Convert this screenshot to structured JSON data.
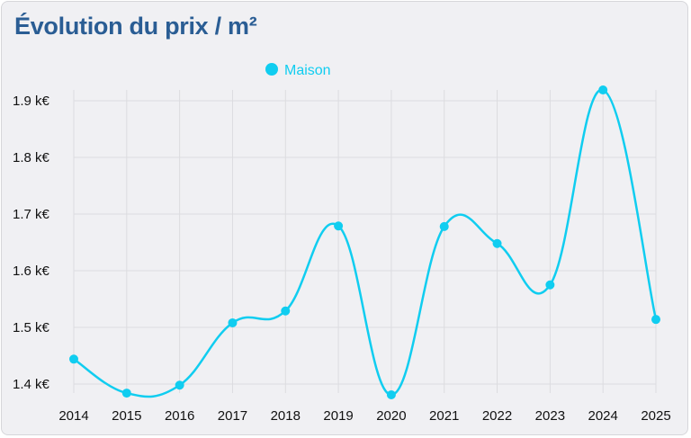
{
  "title": "Évolution du prix / m²",
  "chart_data": {
    "type": "line",
    "title": "Évolution du prix / m²",
    "categories": [
      "2014",
      "2015",
      "2016",
      "2017",
      "2018",
      "2019",
      "2020",
      "2021",
      "2022",
      "2023",
      "2024",
      "2025"
    ],
    "series": [
      {
        "name": "Maison",
        "color": "#10cdf0",
        "values": [
          1.444,
          1.384,
          1.398,
          1.508,
          1.529,
          1.679,
          1.381,
          1.678,
          1.648,
          1.575,
          1.919,
          1.514
        ]
      }
    ],
    "y_unit": "k€",
    "yticks": [
      1.4,
      1.5,
      1.6,
      1.7,
      1.8,
      1.9
    ],
    "ytick_labels": [
      "1.4 k€",
      "1.5 k€",
      "1.6 k€",
      "1.7 k€",
      "1.8 k€",
      "1.9 k€"
    ],
    "ylim": [
      1.4,
      1.9
    ],
    "grid": true,
    "smooth": true,
    "legend_position": "top"
  }
}
